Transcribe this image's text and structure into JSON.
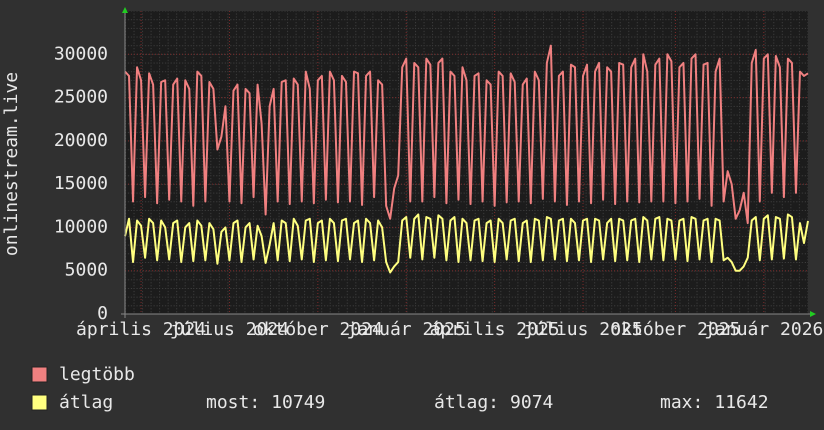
{
  "chart_data": {
    "type": "line",
    "ylabel": "onlinestream.live",
    "xlim": [
      0,
      170
    ],
    "xticks": [
      {
        "value": 4,
        "label": "április 2024"
      },
      {
        "value": 26,
        "label": "július 2024"
      },
      {
        "value": 48,
        "label": "október 2024"
      },
      {
        "value": 70,
        "label": "január 2025"
      },
      {
        "value": 92,
        "label": "április 2025"
      },
      {
        "value": 114,
        "label": "július 2025"
      },
      {
        "value": 137,
        "label": "október 2025"
      },
      {
        "value": 159,
        "label": "január 2026"
      }
    ],
    "ylim": [
      0,
      35000
    ],
    "yticks": [
      0,
      5000,
      10000,
      15000,
      20000,
      25000,
      30000
    ],
    "grid": true,
    "series": [
      {
        "name": "legtöbb",
        "color": "#f08080",
        "values": [
          28000,
          27500,
          13000,
          28500,
          27000,
          13500,
          27800,
          26500,
          12800,
          26800,
          27000,
          13200,
          26500,
          27200,
          13000,
          27000,
          26000,
          12500,
          28000,
          27500,
          13000,
          26800,
          26000,
          19000,
          20500,
          24000,
          13000,
          25800,
          26500,
          12800,
          26000,
          25500,
          13500,
          26500,
          22000,
          11500,
          24000,
          26000,
          13000,
          26800,
          27000,
          12700,
          27200,
          26500,
          13000,
          28000,
          26000,
          12800,
          27000,
          27500,
          13200,
          28000,
          27000,
          12900,
          27500,
          26800,
          13000,
          28000,
          27800,
          12600,
          27500,
          28000,
          13500,
          27000,
          26500,
          12500,
          11000,
          14500,
          16000,
          28500,
          29500,
          13000,
          29000,
          28500,
          13000,
          29500,
          28800,
          13500,
          29000,
          29500,
          12800,
          28000,
          27500,
          13200,
          28500,
          27000,
          12700,
          27500,
          27800,
          13000,
          27000,
          26500,
          12500,
          28000,
          27500,
          12900,
          27800,
          26800,
          13000,
          26500,
          27200,
          12800,
          28000,
          27000,
          13300,
          29000,
          31000,
          13000,
          27500,
          28000,
          12600,
          28800,
          28500,
          13000,
          27500,
          28800,
          12800,
          28000,
          29000,
          13200,
          28500,
          28000,
          12700,
          29000,
          28800,
          13000,
          28500,
          29500,
          12900,
          30000,
          28000,
          13000,
          28800,
          29500,
          13000,
          30000,
          29200,
          12800,
          28500,
          29000,
          13000,
          29500,
          30000,
          13300,
          28800,
          29000,
          12500,
          28000,
          29500,
          13000,
          16500,
          15000,
          11000,
          12000,
          14000,
          10500,
          29000,
          30500,
          13000,
          29500,
          30000,
          14000,
          29800,
          28500,
          13500,
          29500,
          29000,
          14000,
          28000,
          27500,
          27800
        ]
      },
      {
        "name": "átlag",
        "color": "#ffff80",
        "values": [
          9000,
          11000,
          6000,
          10800,
          10200,
          6500,
          11000,
          10500,
          6200,
          10800,
          10000,
          6300,
          10500,
          10800,
          6000,
          10000,
          10500,
          6100,
          10800,
          10200,
          6200,
          10500,
          9800,
          5800,
          9500,
          10000,
          6200,
          10500,
          10800,
          6000,
          10000,
          10500,
          6300,
          10200,
          9000,
          5900,
          8000,
          10500,
          6200,
          10800,
          10500,
          6100,
          11000,
          10200,
          6300,
          10800,
          11000,
          6000,
          10500,
          10800,
          6200,
          11000,
          10500,
          6100,
          10800,
          11000,
          6300,
          10500,
          10800,
          6000,
          11000,
          10500,
          6200,
          10800,
          10000,
          6000,
          4800,
          5500,
          6000,
          10800,
          11200,
          6500,
          11000,
          11500,
          6300,
          11200,
          11000,
          6500,
          11400,
          11000,
          6200,
          10800,
          11200,
          6000,
          11000,
          10500,
          6200,
          10800,
          11000,
          6100,
          10500,
          10800,
          6000,
          11000,
          10500,
          6300,
          10800,
          11000,
          6100,
          10500,
          10800,
          6000,
          11000,
          10800,
          6200,
          11200,
          11000,
          6300,
          10800,
          11000,
          6100,
          11000,
          10500,
          6200,
          10800,
          11000,
          6000,
          11000,
          10800,
          6300,
          10500,
          11000,
          6100,
          11000,
          10800,
          6200,
          10800,
          11000,
          6000,
          11200,
          10800,
          6300,
          11000,
          11200,
          6200,
          11000,
          10800,
          6300,
          10800,
          11000,
          6100,
          11200,
          11000,
          6300,
          10800,
          11000,
          6000,
          11000,
          10800,
          6200,
          6500,
          6000,
          5000,
          5000,
          5500,
          6500,
          10800,
          11200,
          6200,
          11000,
          11400,
          6300,
          11200,
          11000,
          6400,
          11500,
          11200,
          6300,
          10500,
          8200,
          10749
        ]
      }
    ],
    "stats": [
      {
        "label": "most:",
        "value": 10749
      },
      {
        "label": "átlag:",
        "value": 9074
      },
      {
        "label": "max:",
        "value": 11642
      }
    ]
  }
}
